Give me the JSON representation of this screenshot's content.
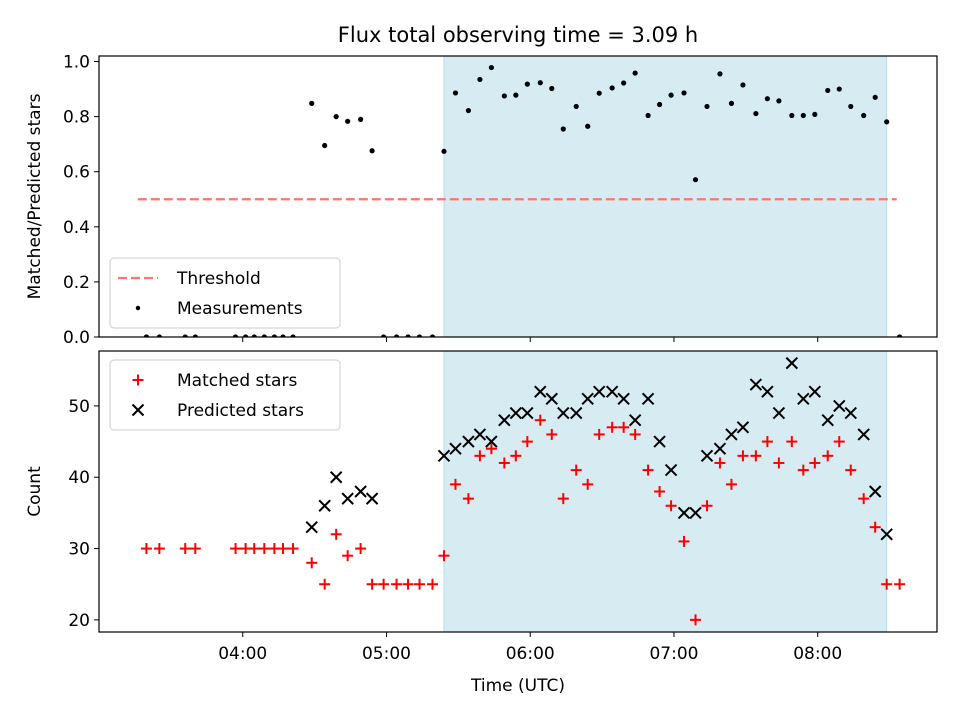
{
  "chart_data": {
    "title": "Flux total observing time = 3.09 h",
    "xlabel": "Time (UTC)",
    "x_tick_labels": [
      "04:00",
      "05:00",
      "06:00",
      "07:00",
      "08:00"
    ],
    "x_tick_values": [
      4.0,
      5.0,
      6.0,
      7.0,
      8.0
    ],
    "xlim": [
      3.0,
      8.83
    ],
    "shaded_region": {
      "x_start": 5.4,
      "x_end": 8.48,
      "color": "#add8e6"
    },
    "panels": [
      {
        "type": "scatter",
        "ylabel": "Matched/Predicted stars",
        "ylim": [
          0.0,
          1.02
        ],
        "y_tick_labels": [
          "0.0",
          "0.2",
          "0.4",
          "0.6",
          "0.8",
          "1.0"
        ],
        "y_tick_values": [
          0.0,
          0.2,
          0.4,
          0.6,
          0.8,
          1.0
        ],
        "legend_position": "lower-left",
        "threshold": {
          "name": "Threshold",
          "value": 0.5,
          "x_range": [
            3.27,
            8.55
          ],
          "color": "#ff7373"
        },
        "series": [
          {
            "name": "Measurements",
            "marker": "dot",
            "color": "#000000",
            "points": [
              [
                3.33,
                0.0
              ],
              [
                3.42,
                0.0
              ],
              [
                3.6,
                0.0
              ],
              [
                3.67,
                0.0
              ],
              [
                3.95,
                0.0
              ],
              [
                4.02,
                0.0
              ],
              [
                4.08,
                0.0
              ],
              [
                4.15,
                0.0
              ],
              [
                4.22,
                0.0
              ],
              [
                4.28,
                0.0
              ],
              [
                4.35,
                0.0
              ],
              [
                4.48,
                0.848
              ],
              [
                4.57,
                0.695
              ],
              [
                4.65,
                0.8
              ],
              [
                4.73,
                0.783
              ],
              [
                4.82,
                0.79
              ],
              [
                4.9,
                0.676
              ],
              [
                4.98,
                0.0
              ],
              [
                5.07,
                0.0
              ],
              [
                5.15,
                0.0
              ],
              [
                5.23,
                0.0
              ],
              [
                5.32,
                0.0
              ],
              [
                5.4,
                0.674
              ],
              [
                5.48,
                0.886
              ],
              [
                5.57,
                0.822
              ],
              [
                5.65,
                0.935
              ],
              [
                5.73,
                0.978
              ],
              [
                5.82,
                0.875
              ],
              [
                5.9,
                0.878
              ],
              [
                5.98,
                0.918
              ],
              [
                6.07,
                0.923
              ],
              [
                6.15,
                0.902
              ],
              [
                6.23,
                0.755
              ],
              [
                6.32,
                0.837
              ],
              [
                6.4,
                0.765
              ],
              [
                6.48,
                0.885
              ],
              [
                6.57,
                0.904
              ],
              [
                6.65,
                0.922
              ],
              [
                6.73,
                0.958
              ],
              [
                6.82,
                0.804
              ],
              [
                6.9,
                0.844
              ],
              [
                6.98,
                0.878
              ],
              [
                7.07,
                0.886
              ],
              [
                7.15,
                0.571
              ],
              [
                7.23,
                0.837
              ],
              [
                7.32,
                0.955
              ],
              [
                7.4,
                0.848
              ],
              [
                7.48,
                0.915
              ],
              [
                7.57,
                0.811
              ],
              [
                7.65,
                0.865
              ],
              [
                7.73,
                0.857
              ],
              [
                7.82,
                0.804
              ],
              [
                7.9,
                0.804
              ],
              [
                7.98,
                0.808
              ],
              [
                8.07,
                0.895
              ],
              [
                8.15,
                0.9
              ],
              [
                8.23,
                0.837
              ],
              [
                8.32,
                0.804
              ],
              [
                8.4,
                0.87
              ],
              [
                8.48,
                0.781
              ],
              [
                8.57,
                0.0
              ]
            ]
          }
        ]
      },
      {
        "type": "scatter",
        "ylabel": "Count",
        "ylim": [
          18.3,
          57.7
        ],
        "y_tick_labels": [
          "20",
          "30",
          "40",
          "50"
        ],
        "y_tick_values": [
          20,
          30,
          40,
          50
        ],
        "legend_position": "top-left",
        "series": [
          {
            "name": "Matched stars",
            "marker": "plus",
            "color": "#ff0000",
            "points": [
              [
                3.33,
                30
              ],
              [
                3.42,
                30
              ],
              [
                3.6,
                30
              ],
              [
                3.67,
                30
              ],
              [
                3.95,
                30
              ],
              [
                4.02,
                30
              ],
              [
                4.08,
                30
              ],
              [
                4.15,
                30
              ],
              [
                4.22,
                30
              ],
              [
                4.28,
                30
              ],
              [
                4.35,
                30
              ],
              [
                4.48,
                28
              ],
              [
                4.57,
                25
              ],
              [
                4.65,
                32
              ],
              [
                4.73,
                29
              ],
              [
                4.82,
                30
              ],
              [
                4.9,
                25
              ],
              [
                4.98,
                25
              ],
              [
                5.07,
                25
              ],
              [
                5.15,
                25
              ],
              [
                5.23,
                25
              ],
              [
                5.32,
                25
              ],
              [
                5.4,
                29
              ],
              [
                5.48,
                39
              ],
              [
                5.57,
                37
              ],
              [
                5.65,
                43
              ],
              [
                5.73,
                44
              ],
              [
                5.82,
                42
              ],
              [
                5.9,
                43
              ],
              [
                5.98,
                45
              ],
              [
                6.07,
                48
              ],
              [
                6.15,
                46
              ],
              [
                6.23,
                37
              ],
              [
                6.32,
                41
              ],
              [
                6.4,
                39
              ],
              [
                6.48,
                46
              ],
              [
                6.57,
                47
              ],
              [
                6.65,
                47
              ],
              [
                6.73,
                46
              ],
              [
                6.82,
                41
              ],
              [
                6.9,
                38
              ],
              [
                6.98,
                36
              ],
              [
                7.07,
                31
              ],
              [
                7.15,
                20
              ],
              [
                7.23,
                36
              ],
              [
                7.32,
                42
              ],
              [
                7.4,
                39
              ],
              [
                7.48,
                43
              ],
              [
                7.57,
                43
              ],
              [
                7.65,
                45
              ],
              [
                7.73,
                42
              ],
              [
                7.82,
                45
              ],
              [
                7.9,
                41
              ],
              [
                7.98,
                42
              ],
              [
                8.07,
                43
              ],
              [
                8.15,
                45
              ],
              [
                8.23,
                41
              ],
              [
                8.32,
                37
              ],
              [
                8.4,
                33
              ],
              [
                8.48,
                25
              ],
              [
                8.57,
                25
              ]
            ]
          },
          {
            "name": "Predicted stars",
            "marker": "x",
            "color": "#000000",
            "points": [
              [
                4.48,
                33
              ],
              [
                4.57,
                36
              ],
              [
                4.65,
                40
              ],
              [
                4.73,
                37
              ],
              [
                4.82,
                38
              ],
              [
                4.9,
                37
              ],
              [
                5.4,
                43
              ],
              [
                5.48,
                44
              ],
              [
                5.57,
                45
              ],
              [
                5.65,
                46
              ],
              [
                5.73,
                45
              ],
              [
                5.82,
                48
              ],
              [
                5.9,
                49
              ],
              [
                5.98,
                49
              ],
              [
                6.07,
                52
              ],
              [
                6.15,
                51
              ],
              [
                6.23,
                49
              ],
              [
                6.32,
                49
              ],
              [
                6.4,
                51
              ],
              [
                6.48,
                52
              ],
              [
                6.57,
                52
              ],
              [
                6.65,
                51
              ],
              [
                6.73,
                48
              ],
              [
                6.82,
                51
              ],
              [
                6.9,
                45
              ],
              [
                6.98,
                41
              ],
              [
                7.07,
                35
              ],
              [
                7.15,
                35
              ],
              [
                7.23,
                43
              ],
              [
                7.32,
                44
              ],
              [
                7.4,
                46
              ],
              [
                7.48,
                47
              ],
              [
                7.57,
                53
              ],
              [
                7.65,
                52
              ],
              [
                7.73,
                49
              ],
              [
                7.82,
                56
              ],
              [
                7.9,
                51
              ],
              [
                7.98,
                52
              ],
              [
                8.07,
                48
              ],
              [
                8.15,
                50
              ],
              [
                8.23,
                49
              ],
              [
                8.32,
                46
              ],
              [
                8.4,
                38
              ],
              [
                8.48,
                32
              ]
            ]
          }
        ]
      }
    ]
  }
}
